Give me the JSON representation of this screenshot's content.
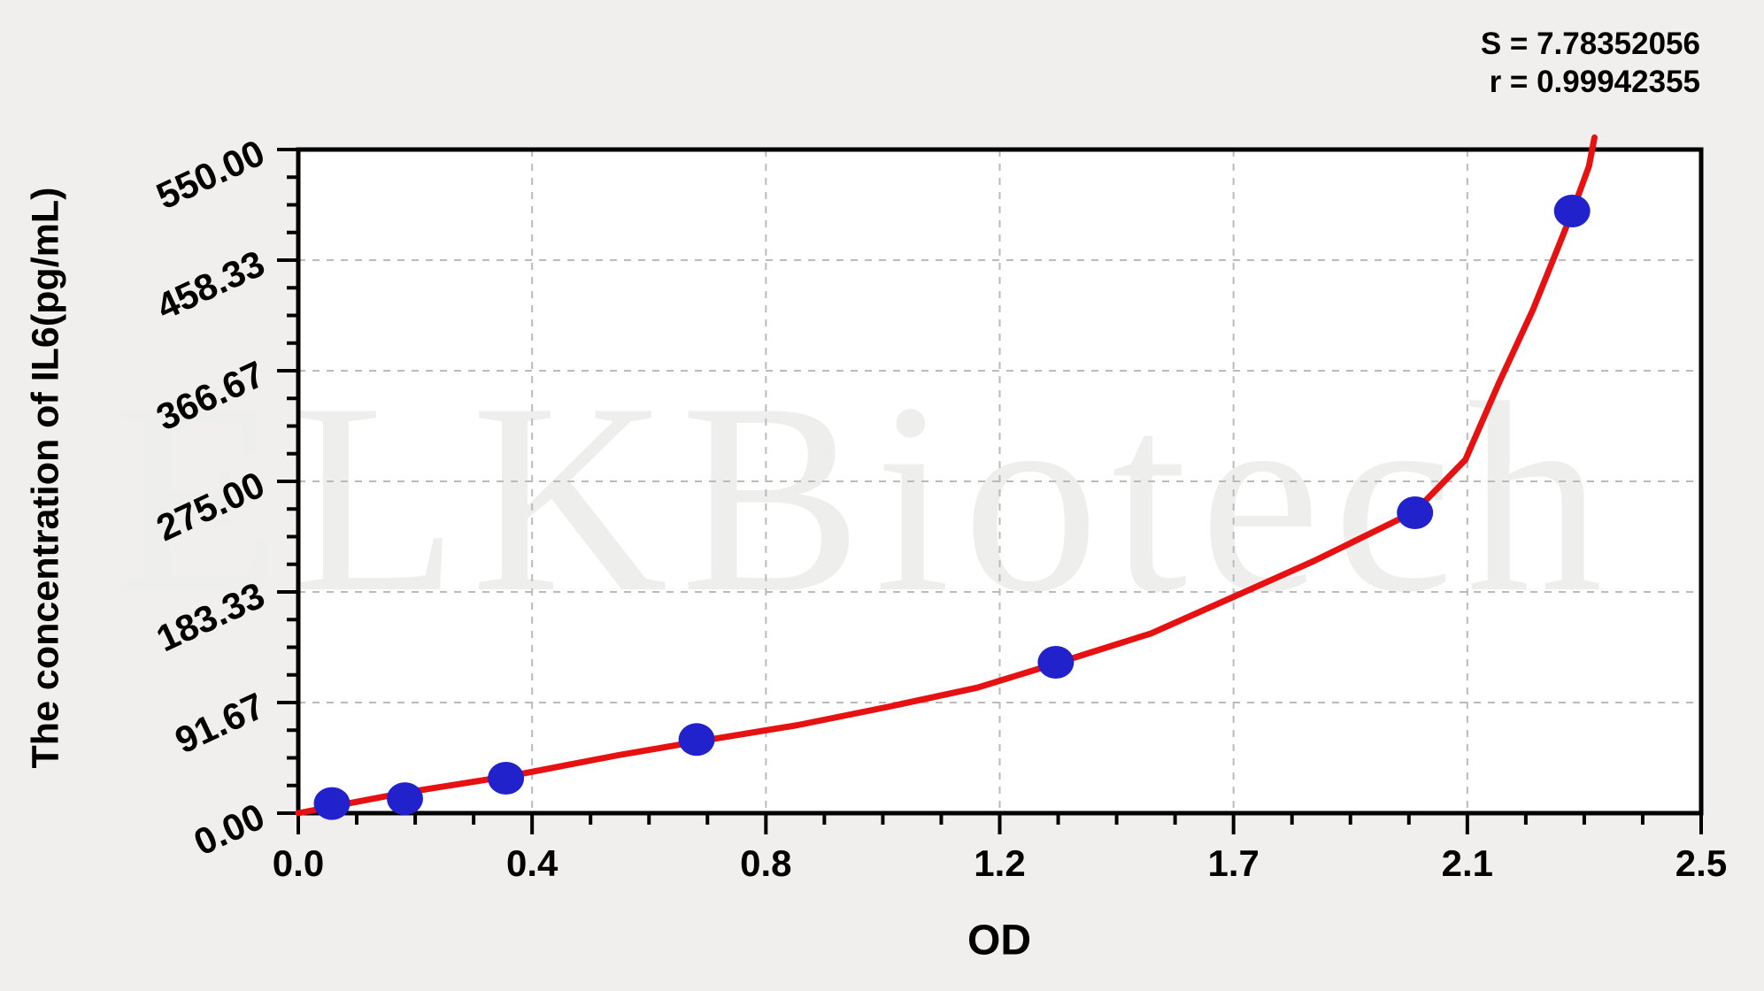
{
  "stats": {
    "s": "S = 7.78352056",
    "r": "r = 0.99942355"
  },
  "watermark": "ELKBiotech",
  "chart_data": {
    "type": "scatter",
    "title": "",
    "xlabel": "OD",
    "ylabel": "The concentration of IL6(pg/mL)",
    "x_tick_labels": [
      "0.0",
      "0.4",
      "0.8",
      "1.2",
      "1.7",
      "2.1",
      "2.5"
    ],
    "y_tick_labels": [
      "0.00",
      "91.67",
      "183.33",
      "275.00",
      "366.67",
      "458.33",
      "550.00"
    ],
    "xlim": [
      0,
      2.5
    ],
    "ylim": [
      0,
      550
    ],
    "minor_divisions_per_major": 4,
    "grid": "dashed gray lines at every major tick",
    "legend": "none",
    "series": [
      {
        "name": "standard points (OD, pg/mL)",
        "points": [
          [
            0.06,
            8
          ],
          [
            0.19,
            12
          ],
          [
            0.37,
            29
          ],
          [
            0.71,
            61
          ],
          [
            1.35,
            125
          ],
          [
            1.99,
            249
          ],
          [
            2.27,
            499
          ]
        ]
      }
    ],
    "fit_curve": [
      [
        0.0,
        0
      ],
      [
        0.1,
        9
      ],
      [
        0.19,
        17
      ],
      [
        0.38,
        31
      ],
      [
        0.57,
        48
      ],
      [
        0.72,
        60
      ],
      [
        0.89,
        73
      ],
      [
        1.05,
        88
      ],
      [
        1.21,
        104
      ],
      [
        1.35,
        124
      ],
      [
        1.52,
        149
      ],
      [
        1.68,
        182
      ],
      [
        1.81,
        209
      ],
      [
        1.92,
        234
      ],
      [
        1.99,
        250
      ],
      [
        2.08,
        293
      ],
      [
        2.14,
        357
      ],
      [
        2.2,
        417
      ],
      [
        2.24,
        463
      ],
      [
        2.27,
        498
      ],
      [
        2.3,
        536
      ],
      [
        2.31,
        560
      ]
    ],
    "colors": {
      "point": "#2222cc",
      "curve": "#e81111",
      "grid": "#bbbbbb",
      "frame": "#000000",
      "plot_background": "#ffffff",
      "page_background": "#f0efed",
      "watermark": "#eeeeec",
      "text": "#000000"
    }
  }
}
